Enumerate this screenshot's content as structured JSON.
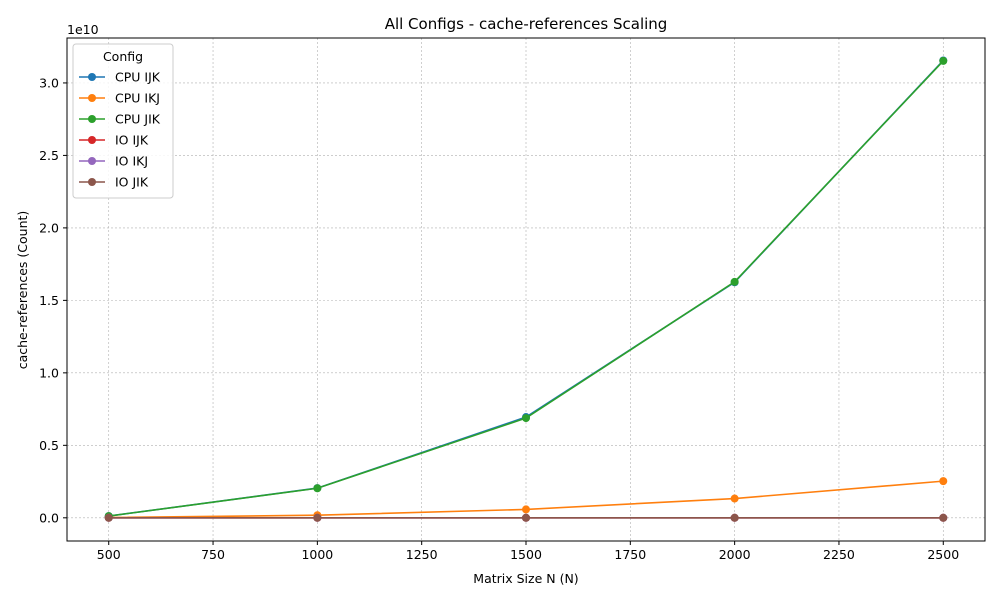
{
  "chart_data": {
    "type": "line",
    "title": "All Configs - cache-references Scaling",
    "xlabel": "Matrix Size N (N)",
    "ylabel": "cache-references (Count)",
    "y_offset_label": "1e10",
    "y_scale_factor": 10000000000,
    "xlim": [
      400,
      2600
    ],
    "ylim": [
      -0.16,
      3.31
    ],
    "x_ticks": [
      500,
      750,
      1000,
      1250,
      1500,
      1750,
      2000,
      2250,
      2500
    ],
    "y_ticks": [
      0.0,
      0.5,
      1.0,
      1.5,
      2.0,
      2.5,
      3.0
    ],
    "y_tick_labels": [
      "0.0",
      "0.5",
      "1.0",
      "1.5",
      "2.0",
      "2.5",
      "3.0"
    ],
    "grid": true,
    "legend_title": "Config",
    "legend_position": "top-left",
    "x": [
      500,
      1000,
      1500,
      2000,
      2500
    ],
    "series": [
      {
        "name": "CPU IJK",
        "color": "#1f77b4",
        "values": [
          0.012,
          0.205,
          0.695,
          1.625,
          3.155
        ]
      },
      {
        "name": "CPU IKJ",
        "color": "#ff7f0e",
        "values": [
          0.002,
          0.018,
          0.058,
          0.133,
          0.253
        ]
      },
      {
        "name": "CPU JIK",
        "color": "#2ca02c",
        "values": [
          0.012,
          0.204,
          0.688,
          1.628,
          3.152
        ]
      },
      {
        "name": "IO IJK",
        "color": "#d62728",
        "values": [
          0.0,
          0.0,
          0.0,
          0.0,
          0.0
        ]
      },
      {
        "name": "IO IKJ",
        "color": "#9467bd",
        "values": [
          0.0,
          0.0,
          0.0,
          0.0,
          0.0
        ]
      },
      {
        "name": "IO JIK",
        "color": "#8c564b",
        "values": [
          0.0,
          0.0,
          0.0,
          0.0,
          0.0
        ]
      }
    ]
  }
}
